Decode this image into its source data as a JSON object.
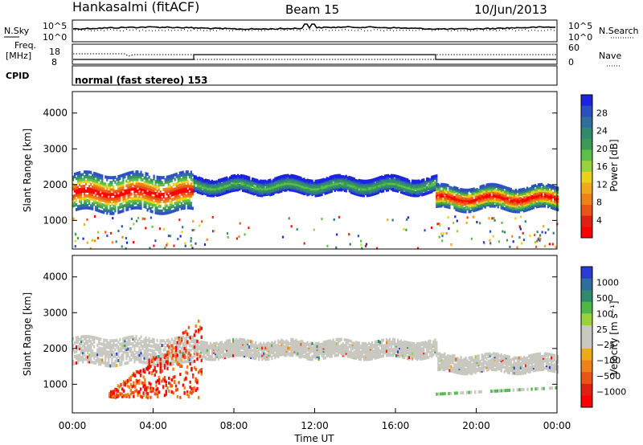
{
  "header": {
    "station": "Hankasalmi (fitACF)",
    "beam": "Beam 15",
    "date": "10/Jun/2013"
  },
  "noise_panel": {
    "left_label": "N.Sky",
    "right_label": "N.Search",
    "left_ticks": [
      "10^5",
      "10^0"
    ],
    "right_ticks": [
      "10^5",
      "10^0"
    ]
  },
  "freq_panel": {
    "left_label_1": "Freq.",
    "left_label_2": "[MHz]",
    "right_label": "Nave",
    "left_ticks": [
      "18",
      "8"
    ],
    "right_ticks": [
      "60",
      "0"
    ]
  },
  "cpid_panel": {
    "label": "CPID",
    "text": "normal (fast stereo) 153"
  },
  "chart_data": [
    {
      "type": "heatmap",
      "panel": "power",
      "ylabel": "Slant Range [km]",
      "yticks": [
        "4000",
        "3000",
        "2000",
        "1000"
      ],
      "ylim": [
        200,
        4600
      ],
      "xlim": [
        0,
        24
      ],
      "colorbar": {
        "label": "Power [dB]",
        "ticks": [
          "28",
          "24",
          "20",
          "16",
          "12",
          "8",
          "4"
        ],
        "colors": [
          "#1d22e0",
          "#2b4fc0",
          "#2f6f98",
          "#2f8a6e",
          "#3b9a56",
          "#5cc048",
          "#9ad23c",
          "#e8d21e",
          "#f0a81c",
          "#f08018",
          "#ea5414",
          "#e02010",
          "#ff0000"
        ]
      },
      "bands": [
        {
          "x0": 0,
          "x1": 6,
          "y_center": 1750,
          "y_half": 500,
          "level": "high"
        },
        {
          "x0": 6,
          "x1": 18,
          "y_center": 1950,
          "y_half": 200,
          "level": "medium"
        },
        {
          "x0": 18,
          "x1": 24,
          "y_center": 1600,
          "y_half": 300,
          "level": "high"
        }
      ]
    },
    {
      "type": "heatmap",
      "panel": "velocity",
      "ylabel": "Slant Range [km]",
      "yticks": [
        "4000",
        "3000",
        "2000",
        "1000"
      ],
      "ylim": [
        200,
        4600
      ],
      "xlim": [
        0,
        24
      ],
      "xlabel": "Time UT",
      "xticks": [
        "00:00",
        "04:00",
        "08:00",
        "12:00",
        "16:00",
        "20:00",
        "00:00"
      ],
      "colorbar": {
        "label": "Velocity [m s⁻¹]",
        "ticks": [
          "1000",
          "500",
          "100",
          "25",
          "−25",
          "−100",
          "−500",
          "−1000"
        ],
        "colors": [
          "#2a3cd0",
          "#2f6fa0",
          "#2f8a6e",
          "#4cb848",
          "#9ad23c",
          "#c8c8c0",
          "#c8c8c0",
          "#f0a81c",
          "#f08018",
          "#ea5414",
          "#e02010",
          "#ff0000"
        ]
      }
    }
  ]
}
